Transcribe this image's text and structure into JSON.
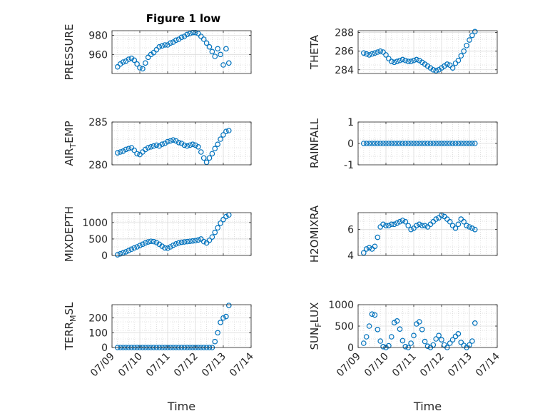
{
  "figure": {
    "title": "Figure 1 low",
    "shared_xlabel": "Time",
    "marker_color": "#0072BD",
    "x_tick_labels": [
      "07/09",
      "07/10",
      "07/11",
      "07/12",
      "07/13",
      "07/14"
    ]
  },
  "chart_data": [
    {
      "type": "scatter",
      "title": "Figure 1 low",
      "ylabel": "PRESSURE",
      "xlabel": "",
      "ylim": [
        940,
        985
      ],
      "yticks": [
        960,
        980
      ],
      "x": [
        0.2,
        0.3,
        0.4,
        0.5,
        0.6,
        0.7,
        0.8,
        0.9,
        1.0,
        1.1,
        1.2,
        1.3,
        1.4,
        1.5,
        1.6,
        1.7,
        1.8,
        1.9,
        2.0,
        2.1,
        2.2,
        2.3,
        2.4,
        2.5,
        2.6,
        2.7,
        2.8,
        2.9,
        3.0,
        3.1,
        3.2,
        3.3,
        3.4,
        3.5,
        3.6,
        3.7,
        3.8,
        3.9,
        4.0,
        4.1,
        4.2
      ],
      "y": [
        947,
        950,
        952,
        953,
        955,
        956,
        954,
        950,
        946,
        945,
        951,
        957,
        960,
        962,
        965,
        968,
        969,
        970,
        970,
        972,
        973,
        975,
        976,
        978,
        979,
        981,
        982,
        983,
        983,
        982,
        979,
        976,
        972,
        968,
        963,
        958,
        966,
        960,
        949,
        966,
        951
      ]
    },
    {
      "type": "scatter",
      "ylabel": "THETA",
      "ylim": [
        283.6,
        288.2
      ],
      "yticks": [
        284,
        286,
        288
      ],
      "x": [
        0.2,
        0.3,
        0.4,
        0.5,
        0.6,
        0.7,
        0.8,
        0.9,
        1.0,
        1.1,
        1.2,
        1.3,
        1.4,
        1.5,
        1.6,
        1.7,
        1.8,
        1.9,
        2.0,
        2.1,
        2.2,
        2.3,
        2.4,
        2.5,
        2.6,
        2.7,
        2.8,
        2.9,
        3.0,
        3.1,
        3.2,
        3.3,
        3.4,
        3.5,
        3.6,
        3.7,
        3.8,
        3.9,
        4.0,
        4.1,
        4.2
      ],
      "y": [
        285.8,
        285.7,
        285.6,
        285.7,
        285.8,
        285.9,
        286.0,
        285.9,
        285.6,
        285.2,
        284.9,
        284.8,
        284.9,
        285.0,
        285.1,
        285.0,
        284.9,
        284.9,
        285.0,
        285.1,
        285.0,
        284.8,
        284.6,
        284.4,
        284.2,
        284.0,
        283.9,
        284.0,
        284.2,
        284.4,
        284.6,
        284.5,
        284.2,
        284.7,
        285.0,
        285.5,
        286.0,
        286.6,
        287.2,
        287.7,
        288.1
      ]
    },
    {
      "type": "scatter",
      "ylabel": "AIR_TEMP",
      "ylim": [
        280,
        285
      ],
      "yticks": [
        280,
        285
      ],
      "x": [
        0.2,
        0.3,
        0.4,
        0.5,
        0.6,
        0.7,
        0.8,
        0.9,
        1.0,
        1.1,
        1.2,
        1.3,
        1.4,
        1.5,
        1.6,
        1.7,
        1.8,
        1.9,
        2.0,
        2.1,
        2.2,
        2.3,
        2.4,
        2.5,
        2.6,
        2.7,
        2.8,
        2.9,
        3.0,
        3.1,
        3.2,
        3.3,
        3.4,
        3.5,
        3.6,
        3.7,
        3.8,
        3.9,
        4.0,
        4.1,
        4.2
      ],
      "y": [
        281.4,
        281.5,
        281.6,
        281.8,
        281.9,
        282.0,
        281.7,
        281.3,
        281.2,
        281.5,
        281.8,
        282.0,
        282.1,
        282.2,
        282.3,
        282.2,
        282.4,
        282.5,
        282.7,
        282.8,
        282.9,
        282.8,
        282.6,
        282.5,
        282.3,
        282.2,
        282.3,
        282.4,
        282.3,
        282.1,
        281.5,
        280.8,
        280.3,
        280.8,
        281.3,
        281.9,
        282.4,
        283.0,
        283.5,
        283.9,
        284.0
      ]
    },
    {
      "type": "scatter",
      "ylabel": "RAINFALL",
      "ylim": [
        -1,
        1
      ],
      "yticks": [
        -1,
        0,
        1
      ],
      "x": [
        0.2,
        0.3,
        0.4,
        0.5,
        0.6,
        0.7,
        0.8,
        0.9,
        1.0,
        1.1,
        1.2,
        1.3,
        1.4,
        1.5,
        1.6,
        1.7,
        1.8,
        1.9,
        2.0,
        2.1,
        2.2,
        2.3,
        2.4,
        2.5,
        2.6,
        2.7,
        2.8,
        2.9,
        3.0,
        3.1,
        3.2,
        3.3,
        3.4,
        3.5,
        3.6,
        3.7,
        3.8,
        3.9,
        4.0,
        4.1,
        4.2
      ],
      "y": [
        0,
        0,
        0,
        0,
        0,
        0,
        0,
        0,
        0,
        0,
        0,
        0,
        0,
        0,
        0,
        0,
        0,
        0,
        0,
        0,
        0,
        0,
        0,
        0,
        0,
        0,
        0,
        0,
        0,
        0,
        0,
        0,
        0,
        0,
        0,
        0,
        0,
        0,
        0,
        0,
        0
      ]
    },
    {
      "type": "scatter",
      "ylabel": "MIXDEPTH",
      "ylim": [
        0,
        1300
      ],
      "yticks": [
        0,
        500,
        1000
      ],
      "x": [
        0.2,
        0.3,
        0.4,
        0.5,
        0.6,
        0.7,
        0.8,
        0.9,
        1.0,
        1.1,
        1.2,
        1.3,
        1.4,
        1.5,
        1.6,
        1.7,
        1.8,
        1.9,
        2.0,
        2.1,
        2.2,
        2.3,
        2.4,
        2.5,
        2.6,
        2.7,
        2.8,
        2.9,
        3.0,
        3.1,
        3.2,
        3.3,
        3.4,
        3.5,
        3.6,
        3.7,
        3.8,
        3.9,
        4.0,
        4.1,
        4.2
      ],
      "y": [
        20,
        50,
        80,
        110,
        150,
        190,
        230,
        260,
        300,
        340,
        380,
        410,
        430,
        420,
        390,
        340,
        280,
        230,
        220,
        260,
        310,
        350,
        380,
        400,
        410,
        420,
        430,
        440,
        450,
        470,
        500,
        420,
        380,
        460,
        560,
        700,
        840,
        980,
        1090,
        1180,
        1230
      ]
    },
    {
      "type": "scatter",
      "ylabel": "H2OMIXRA",
      "ylim": [
        4,
        7.3
      ],
      "yticks": [
        4,
        6
      ],
      "x": [
        0.2,
        0.3,
        0.4,
        0.5,
        0.6,
        0.7,
        0.8,
        0.9,
        1.0,
        1.1,
        1.2,
        1.3,
        1.4,
        1.5,
        1.6,
        1.7,
        1.8,
        1.9,
        2.0,
        2.1,
        2.2,
        2.3,
        2.4,
        2.5,
        2.6,
        2.7,
        2.8,
        2.9,
        3.0,
        3.1,
        3.2,
        3.3,
        3.4,
        3.5,
        3.6,
        3.7,
        3.8,
        3.9,
        4.0,
        4.1,
        4.2
      ],
      "y": [
        4.2,
        4.5,
        4.6,
        4.5,
        4.7,
        5.4,
        6.2,
        6.4,
        6.3,
        6.3,
        6.4,
        6.4,
        6.5,
        6.6,
        6.7,
        6.6,
        6.3,
        6.0,
        6.1,
        6.3,
        6.4,
        6.3,
        6.3,
        6.2,
        6.4,
        6.6,
        6.8,
        6.9,
        7.1,
        7.0,
        6.8,
        6.6,
        6.3,
        6.1,
        6.4,
        6.8,
        6.6,
        6.3,
        6.2,
        6.1,
        6.0
      ]
    },
    {
      "type": "scatter",
      "ylabel": "TERR_MSL",
      "ylim": [
        0,
        290
      ],
      "yticks": [
        0,
        100,
        200
      ],
      "x": [
        0.2,
        0.3,
        0.4,
        0.5,
        0.6,
        0.7,
        0.8,
        0.9,
        1.0,
        1.1,
        1.2,
        1.3,
        1.4,
        1.5,
        1.6,
        1.7,
        1.8,
        1.9,
        2.0,
        2.1,
        2.2,
        2.3,
        2.4,
        2.5,
        2.6,
        2.7,
        2.8,
        2.9,
        3.0,
        3.1,
        3.2,
        3.3,
        3.4,
        3.5,
        3.6,
        3.7,
        3.8,
        3.9,
        4.0,
        4.1,
        4.2
      ],
      "y": [
        0,
        0,
        0,
        0,
        0,
        0,
        0,
        0,
        0,
        0,
        0,
        0,
        0,
        0,
        0,
        0,
        0,
        0,
        0,
        0,
        0,
        0,
        0,
        0,
        0,
        0,
        0,
        0,
        0,
        0,
        0,
        0,
        0,
        0,
        0,
        40,
        100,
        170,
        200,
        210,
        285
      ]
    },
    {
      "type": "scatter",
      "ylabel": "SUN_FLUX",
      "ylim": [
        0,
        1000
      ],
      "yticks": [
        0,
        500,
        1000
      ],
      "x": [
        0.2,
        0.3,
        0.4,
        0.5,
        0.6,
        0.7,
        0.8,
        0.9,
        1.0,
        1.1,
        1.2,
        1.3,
        1.4,
        1.5,
        1.6,
        1.7,
        1.8,
        1.9,
        2.0,
        2.1,
        2.2,
        2.3,
        2.4,
        2.5,
        2.6,
        2.7,
        2.8,
        2.9,
        3.0,
        3.1,
        3.2,
        3.3,
        3.4,
        3.5,
        3.6,
        3.7,
        3.8,
        3.9,
        4.0,
        4.1,
        4.2
      ],
      "y": [
        100,
        250,
        500,
        780,
        760,
        420,
        150,
        20,
        0,
        40,
        250,
        580,
        620,
        430,
        160,
        20,
        0,
        100,
        280,
        550,
        600,
        420,
        140,
        30,
        0,
        60,
        200,
        280,
        180,
        60,
        0,
        100,
        180,
        260,
        320,
        120,
        50,
        0,
        60,
        150,
        570
      ]
    }
  ]
}
